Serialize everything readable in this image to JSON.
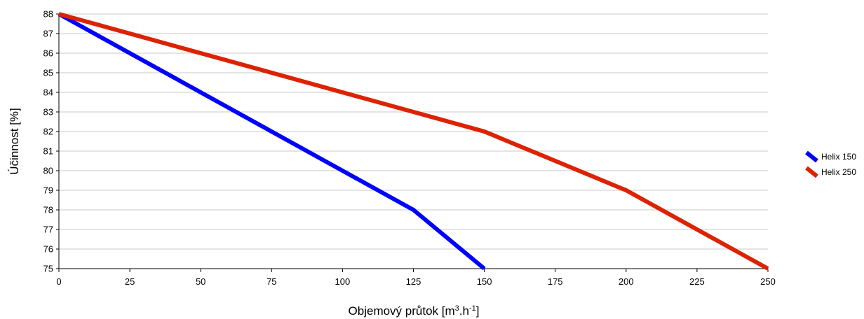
{
  "chart_data": {
    "type": "line",
    "xlabel": "Objemový průtok [m3.h-1]",
    "xlabel_parts": {
      "main": "Objemový průtok [m",
      "sup1": "3",
      "mid": ".h",
      "sup2": "-1",
      "end": "]"
    },
    "ylabel": "Účinnost [%]",
    "xlim": [
      0,
      250
    ],
    "ylim": [
      75,
      88
    ],
    "x_ticks": [
      "0",
      "25",
      "50",
      "75",
      "100",
      "125",
      "150",
      "175",
      "200",
      "225",
      "250"
    ],
    "y_ticks": [
      "75",
      "76",
      "77",
      "78",
      "79",
      "80",
      "81",
      "82",
      "83",
      "84",
      "85",
      "86",
      "87",
      "88"
    ],
    "grid": "horizontal",
    "legend_position": "right",
    "series": [
      {
        "name": "Helix 150",
        "color": "#0000ff",
        "points": [
          [
            0,
            88
          ],
          [
            125,
            78
          ],
          [
            150,
            75
          ]
        ]
      },
      {
        "name": "Helix 250",
        "color": "#dd2200",
        "points": [
          [
            0,
            88
          ],
          [
            150,
            82
          ],
          [
            200,
            79
          ],
          [
            250,
            75
          ]
        ]
      }
    ]
  }
}
